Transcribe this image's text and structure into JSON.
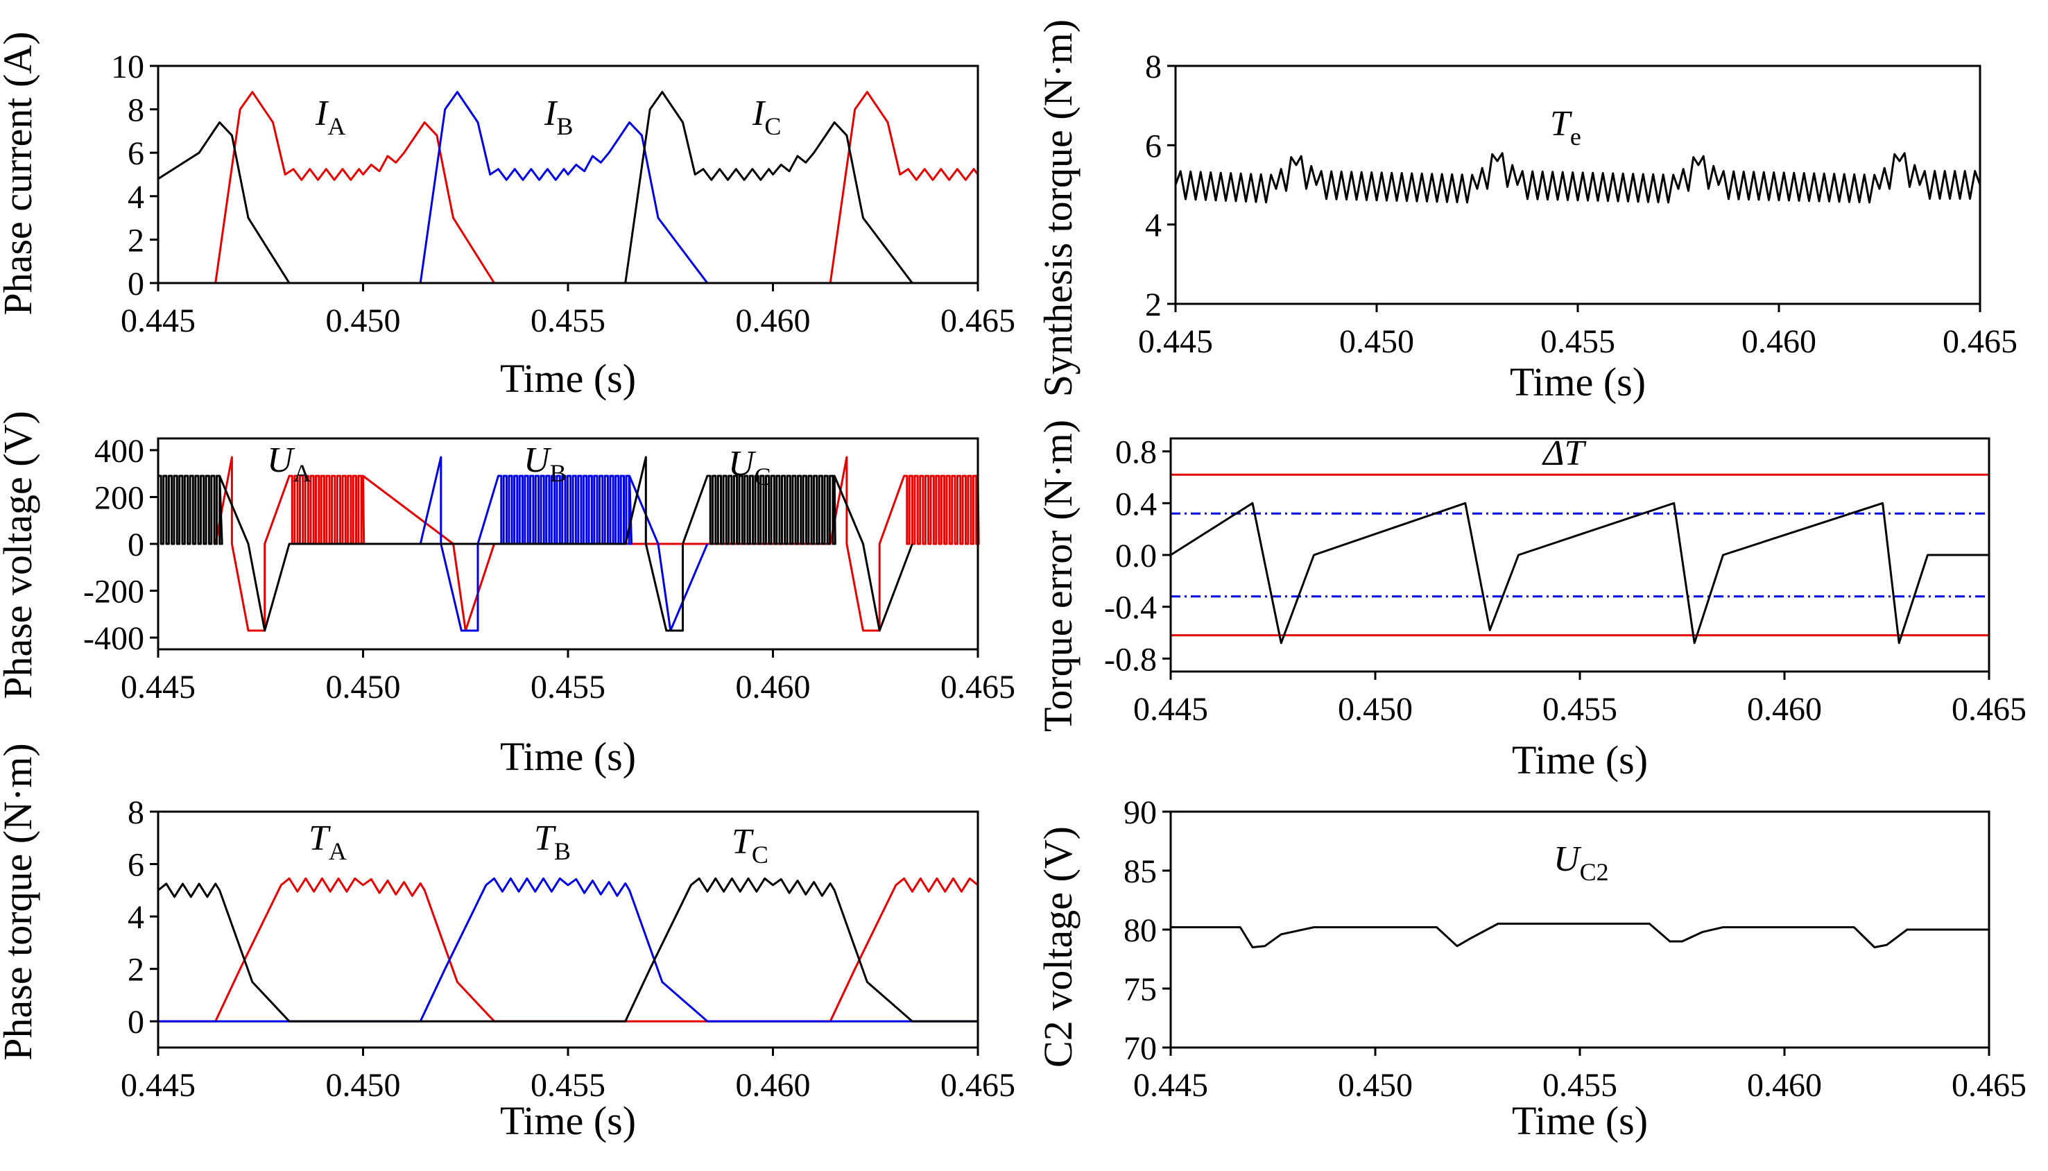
{
  "chart_data": [
    {
      "id": "phase-current",
      "type": "line",
      "ylabel": "Phase current (A)",
      "xlabel": "Time (s)",
      "xlim": [
        0.445,
        0.465
      ],
      "ylim": [
        0,
        10
      ],
      "xticks": [
        "0.445",
        "0.450",
        "0.455",
        "0.460",
        "0.465"
      ],
      "yticks": [
        "0",
        "2",
        "4",
        "6",
        "8",
        "10"
      ],
      "annotations": [
        {
          "main": "I",
          "sub": "A"
        },
        {
          "main": "I",
          "sub": "B"
        },
        {
          "main": "I",
          "sub": "C"
        }
      ],
      "series": [
        {
          "name": "IA",
          "color": "#e60000",
          "x": [
            0.445,
            0.4464,
            0.447,
            0.4473,
            0.4478,
            0.4481,
            0.45,
            0.451,
            0.4515,
            0.4518,
            0.4522,
            0.4532,
            0.455,
            0.46,
            0.4614,
            0.462,
            0.4623,
            0.4628,
            0.4631,
            0.465
          ],
          "y": [
            0,
            0,
            8.0,
            8.8,
            7.4,
            5.0,
            5.0,
            6.0,
            7.4,
            6.8,
            3.0,
            0,
            0,
            0,
            0,
            8.0,
            8.8,
            7.4,
            5.0,
            5.0
          ]
        },
        {
          "name": "IB",
          "color": "#0000e6",
          "x": [
            0.445,
            0.4514,
            0.452,
            0.4523,
            0.4528,
            0.4531,
            0.455,
            0.456,
            0.4565,
            0.4568,
            0.4572,
            0.4584,
            0.465
          ],
          "y": [
            0,
            0,
            8.0,
            8.8,
            7.4,
            5.0,
            5.0,
            6.0,
            7.4,
            6.8,
            3.0,
            0,
            0
          ]
        },
        {
          "name": "IC",
          "color": "#000000",
          "x": [
            0.445,
            0.446,
            0.4465,
            0.4468,
            0.4472,
            0.4482,
            0.45,
            0.4564,
            0.457,
            0.4573,
            0.4578,
            0.4581,
            0.46,
            0.461,
            0.4615,
            0.4618,
            0.4622,
            0.4634,
            0.465
          ],
          "y": [
            4.8,
            6.0,
            7.4,
            6.8,
            3.0,
            0,
            0,
            0,
            8.0,
            8.8,
            7.4,
            5.0,
            5.0,
            6.0,
            7.4,
            6.8,
            3.0,
            0,
            0
          ]
        }
      ]
    },
    {
      "id": "synthesis-torque",
      "type": "line",
      "ylabel": "Synthesis torque (N·m)",
      "xlabel": "Time (s)",
      "xlim": [
        0.445,
        0.465
      ],
      "ylim": [
        2,
        8
      ],
      "xticks": [
        "0.445",
        "0.450",
        "0.455",
        "0.460",
        "0.465"
      ],
      "yticks": [
        "2",
        "4",
        "6",
        "8"
      ],
      "annotations": [
        {
          "main": "T",
          "sub": "e"
        }
      ],
      "series": [
        {
          "name": "Te",
          "color": "#000000",
          "x": [
            0.445,
            0.4475,
            0.448,
            0.4485,
            0.4525,
            0.453,
            0.4535,
            0.4575,
            0.458,
            0.4585,
            0.4625,
            0.463,
            0.4635,
            0.465
          ],
          "y": [
            5.0,
            4.9,
            5.5,
            5.0,
            4.9,
            5.6,
            5.0,
            4.9,
            5.5,
            5.0,
            4.9,
            5.6,
            5.0,
            5.0
          ]
        }
      ]
    },
    {
      "id": "phase-voltage",
      "type": "line",
      "ylabel": "Phase voltage (V)",
      "xlabel": "Time (s)",
      "xlim": [
        0.445,
        0.465
      ],
      "ylim": [
        -450,
        450
      ],
      "xticks": [
        "0.445",
        "0.450",
        "0.455",
        "0.460",
        "0.465"
      ],
      "yticks": [
        "-400",
        "-200",
        "0",
        "200",
        "400"
      ],
      "annotations": [
        {
          "main": "U",
          "sub": "A"
        },
        {
          "main": "U",
          "sub": "B"
        },
        {
          "main": "U",
          "sub": "C"
        }
      ],
      "series": [
        {
          "name": "UA",
          "color": "#e60000",
          "x": [
            0.4464,
            0.4468,
            0.4468,
            0.4472,
            0.4476,
            0.4476,
            0.4482,
            0.45,
            0.4522,
            0.4525,
            0.4525,
            0.4532,
            0.4614,
            0.4618,
            0.4618,
            0.4622,
            0.4626,
            0.4626,
            0.4632,
            0.465
          ],
          "y": [
            0,
            370,
            0,
            -370,
            -370,
            0,
            290,
            290,
            0,
            -370,
            -370,
            0,
            0,
            370,
            0,
            -370,
            -370,
            0,
            290,
            290
          ]
        },
        {
          "name": "UB",
          "color": "#0000e6",
          "x": [
            0.4514,
            0.4519,
            0.4519,
            0.4524,
            0.4528,
            0.4528,
            0.4533,
            0.4565,
            0.4572,
            0.4575,
            0.4575,
            0.4584
          ],
          "y": [
            0,
            370,
            0,
            -370,
            -370,
            0,
            290,
            290,
            0,
            -370,
            -370,
            0
          ]
        },
        {
          "name": "UC",
          "color": "#000000",
          "x": [
            0.445,
            0.4465,
            0.4472,
            0.4476,
            0.4476,
            0.4482,
            0.4564,
            0.4569,
            0.4569,
            0.4574,
            0.4578,
            0.4578,
            0.4584,
            0.4615,
            0.4622,
            0.4626,
            0.4626,
            0.4634
          ],
          "y": [
            290,
            290,
            0,
            -370,
            -370,
            0,
            0,
            370,
            0,
            -370,
            -370,
            0,
            290,
            290,
            0,
            -370,
            -370,
            0
          ]
        }
      ]
    },
    {
      "id": "torque-error",
      "type": "line",
      "ylabel": "Torque error (N·m)",
      "xlabel": "Time (s)",
      "xlim": [
        0.445,
        0.465
      ],
      "ylim": [
        -0.9,
        0.9
      ],
      "xticks": [
        "0.445",
        "0.450",
        "0.455",
        "0.460",
        "0.465"
      ],
      "yticks": [
        "-0.8",
        "-0.4",
        "0.0",
        "0.4",
        "0.8"
      ],
      "annotations": [
        {
          "main": "ΔT",
          "sub": ""
        }
      ],
      "hlines": [
        {
          "y": 0.62,
          "color": "#e60000",
          "style": "solid"
        },
        {
          "y": -0.62,
          "color": "#e60000",
          "style": "solid"
        },
        {
          "y": 0.32,
          "color": "#0000e6",
          "style": "dashdot"
        },
        {
          "y": -0.32,
          "color": "#0000e6",
          "style": "dashdot"
        }
      ],
      "series": [
        {
          "name": "dT",
          "color": "#000000",
          "x": [
            0.445,
            0.447,
            0.4477,
            0.4485,
            0.4522,
            0.4528,
            0.4535,
            0.4573,
            0.4578,
            0.4585,
            0.4624,
            0.4628,
            0.4635,
            0.465
          ],
          "y": [
            0.0,
            0.4,
            -0.68,
            0.0,
            0.4,
            -0.58,
            0.0,
            0.4,
            -0.68,
            0.0,
            0.4,
            -0.68,
            0.0,
            0.0
          ]
        }
      ]
    },
    {
      "id": "phase-torque",
      "type": "line",
      "ylabel": "Phase torque (N·m)",
      "xlabel": "Time (s)",
      "xlim": [
        0.445,
        0.465
      ],
      "ylim": [
        -1,
        8
      ],
      "xticks": [
        "0.445",
        "0.450",
        "0.455",
        "0.460",
        "0.465"
      ],
      "yticks": [
        "0",
        "2",
        "4",
        "6",
        "8"
      ],
      "annotations": [
        {
          "main": "T",
          "sub": "A"
        },
        {
          "main": "T",
          "sub": "B"
        },
        {
          "main": "T",
          "sub": "C"
        }
      ],
      "series": [
        {
          "name": "TA",
          "color": "#e60000",
          "x": [
            0.445,
            0.4464,
            0.447,
            0.448,
            0.45,
            0.4515,
            0.4523,
            0.4532,
            0.455,
            0.4614,
            0.462,
            0.463,
            0.465
          ],
          "y": [
            0,
            0,
            2.0,
            5.2,
            5.2,
            5.0,
            1.5,
            0,
            0,
            0,
            2.0,
            5.2,
            5.2
          ]
        },
        {
          "name": "TB",
          "color": "#0000e6",
          "x": [
            0.445,
            0.4514,
            0.452,
            0.453,
            0.455,
            0.4565,
            0.4573,
            0.4584,
            0.465
          ],
          "y": [
            0,
            0,
            2.0,
            5.2,
            5.2,
            5.0,
            1.5,
            0,
            0
          ]
        },
        {
          "name": "TC",
          "color": "#000000",
          "x": [
            0.445,
            0.4465,
            0.4473,
            0.4482,
            0.45,
            0.4564,
            0.457,
            0.458,
            0.46,
            0.4615,
            0.4623,
            0.4634,
            0.465
          ],
          "y": [
            5.0,
            5.0,
            1.5,
            0,
            0,
            0,
            2.0,
            5.2,
            5.2,
            5.0,
            1.5,
            0,
            0
          ]
        }
      ]
    },
    {
      "id": "c2-voltage",
      "type": "line",
      "ylabel": "C2 voltage (V)",
      "xlabel": "Time (s)",
      "xlim": [
        0.445,
        0.465
      ],
      "ylim": [
        70,
        90
      ],
      "xticks": [
        "0.445",
        "0.450",
        "0.455",
        "0.460",
        "0.465"
      ],
      "yticks": [
        "70",
        "75",
        "80",
        "85",
        "90"
      ],
      "annotations": [
        {
          "main": "U",
          "sub": "C2"
        }
      ],
      "series": [
        {
          "name": "UC2",
          "color": "#000000",
          "x": [
            0.445,
            0.4467,
            0.447,
            0.4473,
            0.4477,
            0.4485,
            0.4515,
            0.452,
            0.4523,
            0.453,
            0.4537,
            0.4567,
            0.4572,
            0.4575,
            0.458,
            0.4585,
            0.4617,
            0.4622,
            0.4625,
            0.463,
            0.465
          ],
          "y": [
            80.2,
            80.2,
            78.5,
            78.6,
            79.6,
            80.2,
            80.2,
            78.6,
            79.2,
            80.5,
            80.5,
            80.5,
            79.0,
            79.0,
            79.8,
            80.2,
            80.2,
            78.5,
            78.7,
            80.0,
            80.0
          ]
        }
      ]
    }
  ]
}
